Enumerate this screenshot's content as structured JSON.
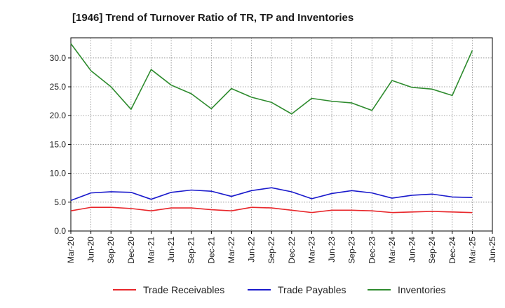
{
  "chart_data": {
    "type": "line",
    "title": "[1946]  Trend of Turnover Ratio of TR, TP and Inventories",
    "xlabel": "",
    "ylabel": "",
    "ylim": [
      0,
      33.5
    ],
    "y_ticks": [
      "0.0",
      "5.0",
      "10.0",
      "15.0",
      "20.0",
      "25.0",
      "30.0"
    ],
    "y_tick_values": [
      0,
      5,
      10,
      15,
      20,
      25,
      30
    ],
    "x_tick_labels": [
      "Mar-20",
      "Jun-20",
      "Sep-20",
      "Dec-20",
      "Mar-21",
      "Jun-21",
      "Sep-21",
      "Dec-21",
      "Mar-22",
      "Jun-22",
      "Sep-22",
      "Dec-22",
      "Mar-23",
      "Jun-23",
      "Sep-23",
      "Dec-23",
      "Mar-24",
      "Jun-24",
      "Sep-24",
      "Dec-24",
      "Mar-25",
      "Jun-25"
    ],
    "x": [
      "Mar-20",
      "Jun-20",
      "Sep-20",
      "Dec-20",
      "Mar-21",
      "Jun-21",
      "Sep-21",
      "Dec-21",
      "Mar-22",
      "Jun-22",
      "Sep-22",
      "Dec-22",
      "Mar-23",
      "Jun-23",
      "Sep-23",
      "Dec-23",
      "Mar-24",
      "Jun-24",
      "Sep-24",
      "Dec-24",
      "Mar-25"
    ],
    "grid": true,
    "legend_position": "bottom",
    "series": [
      {
        "name": "Trade Receivables",
        "color": "#e8262a",
        "values": [
          3.5,
          4.1,
          4.1,
          3.9,
          3.5,
          4.0,
          4.0,
          3.7,
          3.5,
          4.1,
          4.0,
          3.6,
          3.2,
          3.6,
          3.6,
          3.5,
          3.2,
          3.3,
          3.4,
          3.3,
          3.2
        ]
      },
      {
        "name": "Trade Payables",
        "color": "#1a1acc",
        "values": [
          5.3,
          6.6,
          6.8,
          6.7,
          5.5,
          6.7,
          7.1,
          6.9,
          6.0,
          7.0,
          7.5,
          6.8,
          5.6,
          6.5,
          7.0,
          6.6,
          5.7,
          6.2,
          6.4,
          5.9,
          5.8
        ]
      },
      {
        "name": "Inventories",
        "color": "#2e8b2e",
        "values": [
          32.5,
          27.8,
          25.0,
          21.1,
          28.0,
          25.3,
          23.8,
          21.2,
          24.7,
          23.2,
          22.3,
          20.3,
          23.0,
          22.5,
          22.2,
          20.9,
          26.1,
          24.9,
          24.6,
          23.5,
          31.3
        ]
      }
    ]
  }
}
